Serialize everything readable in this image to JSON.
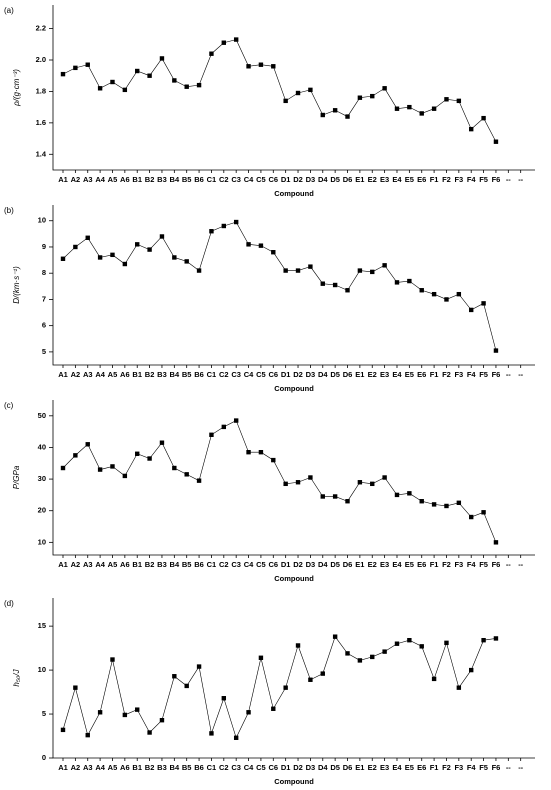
{
  "chart_data": [
    {
      "type": "line",
      "panel_label": "(a)",
      "x_label": "Compound",
      "y_label": "ρ/(g·cm⁻³)",
      "categories": [
        "A1",
        "A2",
        "A3",
        "A4",
        "A5",
        "A6",
        "B1",
        "B2",
        "B3",
        "B4",
        "B5",
        "B6",
        "C1",
        "C2",
        "C3",
        "C4",
        "C5",
        "C6",
        "D1",
        "D2",
        "D3",
        "D4",
        "D5",
        "D6",
        "E1",
        "E2",
        "E3",
        "E4",
        "E5",
        "E6",
        "F1",
        "F2",
        "F3",
        "F4",
        "F5",
        "F6",
        "--",
        "--"
      ],
      "series": [
        {
          "color": "#000000",
          "values": [
            1.91,
            1.95,
            1.97,
            1.82,
            1.86,
            1.81,
            1.93,
            1.9,
            2.01,
            1.87,
            1.83,
            1.84,
            2.04,
            2.11,
            2.13,
            1.96,
            1.97,
            1.96,
            1.74,
            1.79,
            1.81,
            1.65,
            1.68,
            1.64,
            1.76,
            1.77,
            1.82,
            1.69,
            1.7,
            1.66,
            1.69,
            1.75,
            1.74,
            1.56,
            1.63,
            1.48,
            null,
            null
          ]
        }
      ],
      "ylim": [
        1.3,
        2.35
      ],
      "yticks": [
        1.4,
        1.6,
        1.8,
        {
          "value": 2,
          "label": "2.0"
        },
        2.2
      ]
    },
    {
      "type": "line",
      "panel_label": "(b)",
      "x_label": "Compound",
      "y_label": "D/(km·s⁻¹)",
      "categories": [
        "A1",
        "A2",
        "A3",
        "A4",
        "A5",
        "A6",
        "B1",
        "B2",
        "B3",
        "B4",
        "B5",
        "B6",
        "C1",
        "C2",
        "C3",
        "C4",
        "C5",
        "C6",
        "D1",
        "D2",
        "D3",
        "D4",
        "D5",
        "D6",
        "E1",
        "E2",
        "E3",
        "E4",
        "E5",
        "E6",
        "F1",
        "F2",
        "F3",
        "F4",
        "F5",
        "F6",
        "--",
        "--"
      ],
      "series": [
        {
          "color": "#000000",
          "values": [
            8.55,
            9.0,
            9.35,
            8.6,
            8.7,
            8.35,
            9.1,
            8.9,
            9.4,
            8.6,
            8.45,
            8.1,
            9.6,
            9.8,
            9.95,
            9.1,
            9.05,
            8.8,
            8.1,
            8.1,
            8.25,
            7.6,
            7.55,
            7.35,
            8.1,
            8.05,
            8.3,
            7.65,
            7.7,
            7.35,
            7.2,
            7.0,
            7.2,
            6.6,
            6.85,
            5.05,
            null,
            null
          ]
        }
      ],
      "ylim": [
        4.5,
        10.6
      ],
      "yticks": [
        5,
        6,
        7,
        8,
        9,
        10
      ]
    },
    {
      "type": "line",
      "panel_label": "(c)",
      "x_label": "Compound",
      "y_label": "P/GPa",
      "categories": [
        "A1",
        "A2",
        "A3",
        "A4",
        "A5",
        "A6",
        "B1",
        "B2",
        "B3",
        "B4",
        "B5",
        "B6",
        "C1",
        "C2",
        "C3",
        "C4",
        "C5",
        "C6",
        "D1",
        "D2",
        "D3",
        "D4",
        "D5",
        "D6",
        "E1",
        "E2",
        "E3",
        "E4",
        "E5",
        "E6",
        "F1",
        "F2",
        "F3",
        "F4",
        "F5",
        "F6",
        "--",
        "--"
      ],
      "series": [
        {
          "color": "#000000",
          "values": [
            33.5,
            37.5,
            41,
            33,
            34,
            31,
            38,
            36.5,
            41.5,
            33.5,
            31.5,
            29.5,
            44,
            46.5,
            48.5,
            38.5,
            38.5,
            36,
            28.5,
            29,
            30.5,
            24.5,
            24.5,
            23,
            29,
            28.5,
            30.5,
            25,
            25.5,
            23,
            22,
            21.5,
            22.5,
            18,
            19.5,
            10,
            null,
            null
          ]
        }
      ],
      "ylim": [
        6,
        55
      ],
      "yticks": [
        10,
        20,
        30,
        40,
        50
      ]
    },
    {
      "type": "line",
      "panel_label": "(d)",
      "x_label": "Compound",
      "y_label": "h₅₀/J",
      "categories": [
        "A1",
        "A2",
        "A3",
        "A4",
        "A5",
        "A6",
        "B1",
        "B2",
        "B3",
        "B4",
        "B5",
        "B6",
        "C1",
        "C2",
        "C3",
        "C4",
        "C5",
        "C6",
        "D1",
        "D2",
        "D3",
        "D4",
        "D5",
        "D6",
        "E1",
        "E2",
        "E3",
        "E4",
        "E5",
        "E6",
        "F1",
        "F2",
        "F3",
        "F4",
        "F5",
        "F6",
        "--",
        "--"
      ],
      "series": [
        {
          "color": "#000000",
          "values": [
            3.2,
            8,
            2.6,
            5.2,
            11.2,
            4.9,
            5.5,
            2.9,
            4.3,
            9.3,
            8.2,
            10.4,
            2.8,
            6.8,
            2.3,
            5.2,
            11.4,
            5.6,
            8,
            12.8,
            8.9,
            9.6,
            13.8,
            11.9,
            11.1,
            11.5,
            12.1,
            13,
            13.4,
            12.7,
            9,
            13.1,
            8,
            10,
            13.4,
            13.6,
            null,
            null
          ]
        }
      ],
      "ylim": [
        0,
        18.2
      ],
      "yticks": [
        0,
        5,
        10,
        15
      ]
    }
  ]
}
